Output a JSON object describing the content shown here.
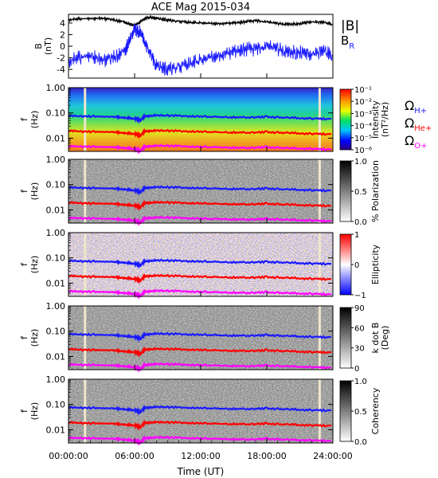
{
  "chart_data": {
    "title": "ACE Mag 2015-034",
    "type": "multi-panel: line plot + spectrograms",
    "xaxis": {
      "label": "Time (UT)",
      "ticks": [
        "00:00:00",
        "06:00:00",
        "12:00:00",
        "18:00:00",
        "24:00:00"
      ],
      "range_hours": [
        0,
        24
      ]
    },
    "marker_lines_hours": [
      1.5,
      22.8
    ],
    "panels": [
      {
        "id": "field",
        "type": "line",
        "ylabel": "B\n(nT)",
        "yticks": [
          "4",
          "2",
          "0",
          "-2",
          "-4"
        ],
        "ylim": [
          -5.5,
          5.5
        ],
        "legend": [
          "|B|",
          "B",
          "R"
        ],
        "series": [
          {
            "name": "|B|",
            "color": "#000000",
            "x": [
              0,
              1,
              2,
              3,
              4,
              5,
              5.5,
              6,
              6.5,
              7,
              7.5,
              8,
              9,
              10,
              11,
              12,
              13,
              14,
              15,
              16,
              17,
              18,
              19,
              20,
              21,
              22,
              23,
              24
            ],
            "y": [
              4.6,
              4.7,
              4.8,
              4.8,
              4.6,
              4.2,
              3.8,
              3.6,
              4.2,
              4.9,
              5.0,
              4.8,
              4.5,
              4.3,
              4.1,
              4.0,
              3.9,
              3.9,
              4.0,
              4.2,
              4.4,
              4.2,
              3.9,
              3.8,
              3.9,
              4.2,
              4.1,
              3.8
            ]
          },
          {
            "name": "B_R",
            "color": "#1a1aff",
            "x": [
              0,
              1,
              2,
              3,
              4,
              5,
              5.5,
              6,
              6.5,
              7,
              7.5,
              8,
              9,
              10,
              11,
              12,
              13,
              14,
              15,
              16,
              17,
              18,
              19,
              20,
              21,
              22,
              23,
              24
            ],
            "y": [
              -2.5,
              -2.0,
              -1.5,
              -2.5,
              -2.0,
              -1.0,
              0.5,
              3.0,
              2.5,
              0.5,
              -1.5,
              -3.5,
              -4.0,
              -3.5,
              -3.0,
              -2.5,
              -2.0,
              -1.5,
              -1.0,
              -0.5,
              -0.5,
              0.0,
              -0.5,
              -1.0,
              -1.0,
              -1.5,
              -1.0,
              -1.5
            ]
          }
        ]
      },
      {
        "id": "intensity",
        "type": "heatmap",
        "ylabel": "f\n(Hz)",
        "yticks": [
          "1.00",
          "0.10",
          "0.01"
        ],
        "ylim": [
          0.003,
          1.0
        ],
        "yscale": "log",
        "colorbar": {
          "label": "Intensity\n(nT²/Hz)",
          "ticks": [
            "10⁻¹",
            "10⁻²",
            "10⁻³",
            "10⁻⁴",
            "10⁻⁵",
            "10⁻⁶"
          ],
          "colormap": "rainbow"
        },
        "side_labels": [
          {
            "text": "Ω",
            "sub": "H+",
            "color": "#1a1aff"
          },
          {
            "text": "Ω",
            "sub": "He+",
            "color": "#ff0000"
          },
          {
            "text": "Ω",
            "sub": "O+",
            "color": "#ff00ff"
          }
        ]
      },
      {
        "id": "polarization",
        "type": "heatmap",
        "ylabel": "f\n(Hz)",
        "yticks": [
          "1.00",
          "0.10",
          "0.01"
        ],
        "ylim": [
          0.003,
          1.0
        ],
        "yscale": "log",
        "colorbar": {
          "label": "% Polarization",
          "ticks": [
            "1.0",
            "0.5",
            "0.0"
          ],
          "colormap": "gray"
        }
      },
      {
        "id": "ellipticity",
        "type": "heatmap",
        "ylabel": "f\n(Hz)",
        "yticks": [
          "1.00",
          "0.10",
          "0.01"
        ],
        "ylim": [
          0.003,
          1.0
        ],
        "yscale": "log",
        "colorbar": {
          "label": "Ellipticity",
          "ticks": [
            "1",
            "0",
            "−1"
          ],
          "colormap": "blue-white-red"
        }
      },
      {
        "id": "kdotb",
        "type": "heatmap",
        "ylabel": "f\n(Hz)",
        "yticks": [
          "1.00",
          "0.10",
          "0.01"
        ],
        "ylim": [
          0.003,
          1.0
        ],
        "yscale": "log",
        "colorbar": {
          "label": "k dot B\n(Deg)",
          "ticks": [
            "90",
            "60",
            "30",
            "0"
          ],
          "colormap": "gray"
        }
      },
      {
        "id": "coherency",
        "type": "heatmap",
        "ylabel": "f\n(Hz)",
        "yticks": [
          "1.00",
          "0.10",
          "0.01"
        ],
        "ylim": [
          0.003,
          1.0
        ],
        "yscale": "log",
        "colorbar": {
          "label": "Coherency",
          "ticks": [
            "1.0",
            "0.5",
            "0.0"
          ],
          "colormap": "gray"
        }
      }
    ],
    "gyrofrequency_lines": [
      {
        "name": "H+",
        "color": "#1a1aff",
        "x": [
          0,
          2,
          4,
          5,
          6,
          6.5,
          7,
          8,
          10,
          12,
          14,
          16,
          18,
          20,
          22,
          24
        ],
        "y": [
          0.075,
          0.073,
          0.07,
          0.065,
          0.06,
          0.05,
          0.075,
          0.08,
          0.076,
          0.072,
          0.068,
          0.066,
          0.07,
          0.064,
          0.06,
          0.058
        ]
      },
      {
        "name": "He+",
        "color": "#ff0000",
        "x": [
          0,
          2,
          4,
          5,
          6,
          6.5,
          7,
          8,
          10,
          12,
          14,
          16,
          18,
          20,
          22,
          24
        ],
        "y": [
          0.019,
          0.018,
          0.0175,
          0.016,
          0.015,
          0.0125,
          0.019,
          0.02,
          0.019,
          0.018,
          0.017,
          0.0165,
          0.0175,
          0.016,
          0.015,
          0.0145
        ]
      },
      {
        "name": "O+",
        "color": "#ff00ff",
        "x": [
          0,
          2,
          4,
          5,
          6,
          6.5,
          7,
          8,
          10,
          12,
          14,
          16,
          18,
          20,
          22,
          24
        ],
        "y": [
          0.0047,
          0.0046,
          0.0044,
          0.0041,
          0.0038,
          0.0031,
          0.0047,
          0.005,
          0.0048,
          0.0045,
          0.0043,
          0.0041,
          0.0044,
          0.004,
          0.0038,
          0.0036
        ]
      }
    ]
  }
}
